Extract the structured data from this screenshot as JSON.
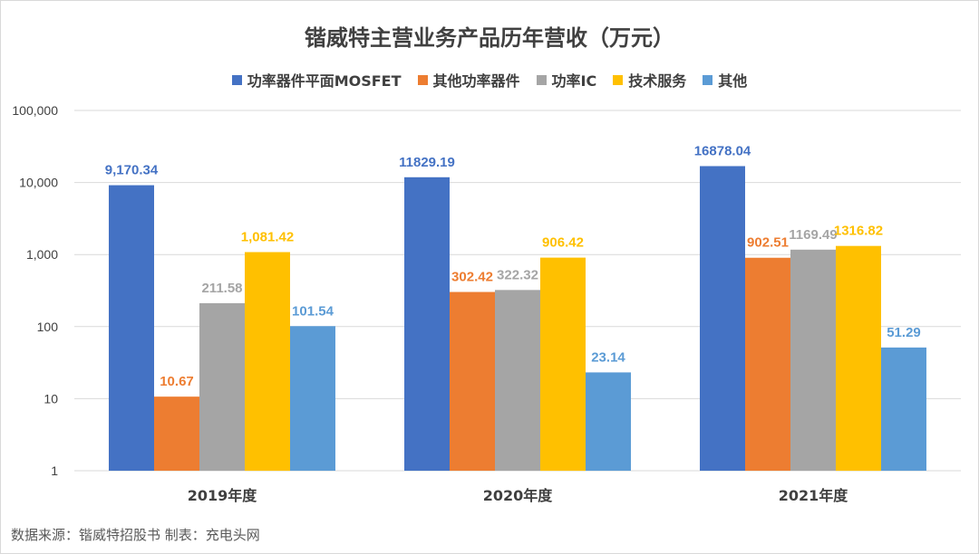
{
  "chart_data": {
    "type": "bar",
    "title": "锴威特主营业务产品历年营收（万元）",
    "scale": "log",
    "ylim": [
      1,
      100000
    ],
    "yticks": [
      {
        "value": 1,
        "label": "1"
      },
      {
        "value": 10,
        "label": "10"
      },
      {
        "value": 100,
        "label": "100"
      },
      {
        "value": 1000,
        "label": "1,000"
      },
      {
        "value": 10000,
        "label": "10,000"
      },
      {
        "value": 100000,
        "label": "100,000"
      }
    ],
    "categories": [
      "2019年度",
      "2020年度",
      "2021年度"
    ],
    "series": [
      {
        "name": "功率器件平面MOSFET",
        "color": "#4472C4",
        "values": [
          9170.34,
          11829.19,
          16878.04
        ],
        "labels": [
          "9,170.34",
          "11829.19",
          "16878.04"
        ]
      },
      {
        "name": "其他功率器件",
        "color": "#ED7D31",
        "values": [
          10.67,
          302.42,
          902.51
        ],
        "labels": [
          "10.67",
          "302.42",
          "902.51"
        ]
      },
      {
        "name": "功率IC",
        "color": "#A5A5A5",
        "values": [
          211.58,
          322.32,
          1169.49
        ],
        "labels": [
          "211.58",
          "322.32",
          "1169.49"
        ]
      },
      {
        "name": "技术服务",
        "color": "#FFC000",
        "values": [
          1081.42,
          906.42,
          1316.82
        ],
        "labels": [
          "1,081.42",
          "906.42",
          "1316.82"
        ]
      },
      {
        "name": "其他",
        "color": "#5B9BD5",
        "values": [
          101.54,
          23.14,
          51.29
        ],
        "labels": [
          "101.54",
          "23.14",
          "51.29"
        ]
      }
    ],
    "grid": true,
    "legend_position": "top"
  },
  "footer": {
    "source": "数据来源：锴威特招股书  制表：充电头网"
  }
}
